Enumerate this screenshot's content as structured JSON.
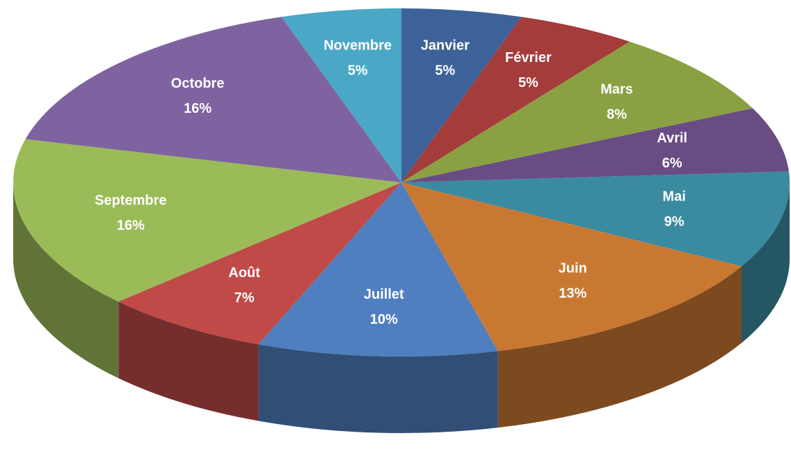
{
  "chart_data": {
    "type": "pie",
    "categories": [
      "Janvier",
      "Février",
      "Mars",
      "Avril",
      "Mai",
      "Juin",
      "Juillet",
      "Août",
      "Septembre",
      "Octobre",
      "Novembre"
    ],
    "values": [
      5,
      5,
      8,
      6,
      9,
      13,
      10,
      7,
      16,
      16,
      5
    ],
    "value_labels": [
      "5%",
      "5%",
      "8%",
      "6%",
      "9%",
      "13%",
      "10%",
      "7%",
      "16%",
      "16%",
      "5%"
    ],
    "colors": [
      "#3d6299",
      "#a33c3a",
      "#89a143",
      "#6a4c85",
      "#3a8aa0",
      "#c97832",
      "#4f7fbf",
      "#bf4a48",
      "#9bbb59",
      "#7e63a0",
      "#4aa8c6"
    ]
  }
}
